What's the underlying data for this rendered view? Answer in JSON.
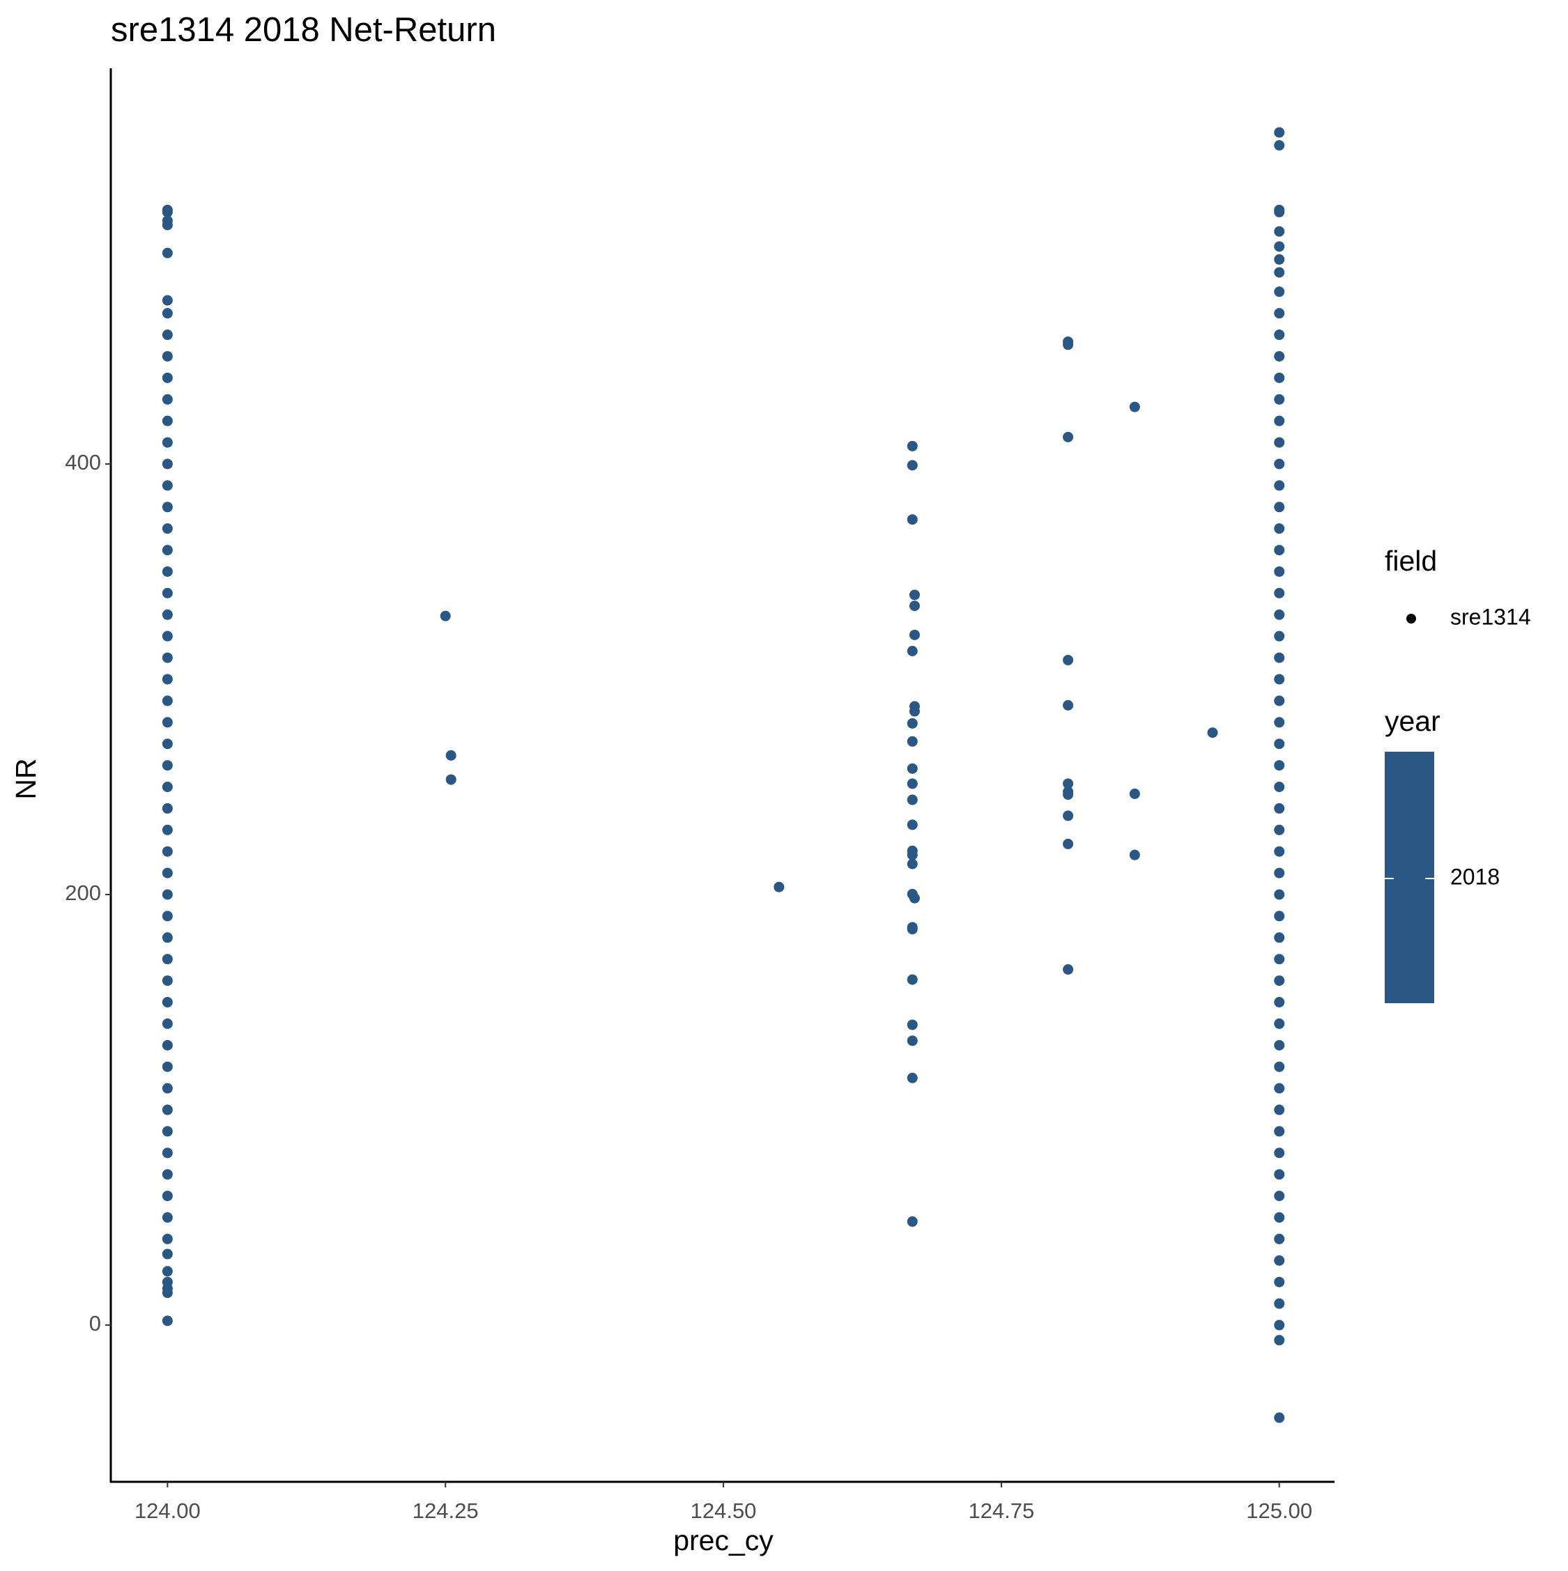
{
  "chart_data": {
    "type": "scatter",
    "title": "sre1314 2018 Net-Return",
    "x_label": "prec_cy",
    "y_label": "NR",
    "xlim": [
      123.949,
      125.0497
    ],
    "ylim": [
      -72.8,
      583.8
    ],
    "xticks": [
      {
        "value": 124,
        "label": "124.00"
      },
      {
        "value": 124.25,
        "label": "124.25"
      },
      {
        "value": 124.5,
        "label": "124.50"
      },
      {
        "value": 124.75,
        "label": "124.75"
      },
      {
        "value": 125,
        "label": "125.00"
      }
    ],
    "yticks": [
      0,
      200,
      400
    ],
    "grid": false,
    "legend": {
      "field_title": "field",
      "year_title": "year",
      "year_label": 2018
    },
    "series": [
      {
        "name": "sre1314",
        "color": "#2a5783",
        "x": [
          124,
          124,
          124,
          124,
          124,
          124,
          124,
          124,
          124,
          124,
          124,
          124,
          124,
          124,
          124,
          124,
          124,
          124,
          124,
          124,
          124,
          124,
          124,
          124,
          124,
          124,
          124,
          124,
          124,
          124,
          124,
          124,
          124,
          124,
          124,
          124,
          124,
          124,
          124,
          124,
          124,
          124,
          124,
          124,
          124,
          124,
          124,
          124,
          124,
          124,
          124,
          124,
          124,
          124,
          124,
          124,
          125,
          125,
          125,
          125,
          125,
          125,
          125,
          125,
          125,
          125,
          125,
          125,
          125,
          125,
          125,
          125,
          125,
          125,
          125,
          125,
          125,
          125,
          125,
          125,
          125,
          125,
          125,
          125,
          125,
          125,
          125,
          125,
          125,
          125,
          125,
          125,
          125,
          125,
          125,
          125,
          125,
          125,
          125,
          125,
          125,
          125,
          125,
          125,
          125,
          125,
          125,
          125,
          125,
          125,
          125,
          125,
          125,
          125,
          125,
          124.25,
          124.255,
          124.255,
          124.55,
          124.67,
          124.67,
          124.67,
          124.672,
          124.672,
          124.672,
          124.67,
          124.672,
          124.672,
          124.67,
          124.67,
          124.67,
          124.67,
          124.67,
          124.67,
          124.67,
          124.67,
          124.67,
          124.67,
          124.672,
          124.67,
          124.67,
          124.67,
          124.67,
          124.67,
          124.67,
          124.67,
          124.81,
          124.81,
          124.81,
          124.81,
          124.81,
          124.81,
          124.81,
          124.81,
          124.81,
          124.81,
          124.81,
          124.87,
          124.87,
          124.87,
          124.94
        ],
        "values": [
          518,
          517,
          513,
          511,
          498,
          476,
          470,
          460,
          450,
          440,
          430,
          420,
          410,
          400,
          390,
          380,
          370,
          360,
          350,
          340,
          330,
          320,
          310,
          300,
          290,
          280,
          270,
          260,
          250,
          240,
          230,
          220,
          210,
          200,
          190,
          180,
          170,
          160,
          150,
          140,
          130,
          120,
          110,
          100,
          90,
          80,
          70,
          60,
          50,
          40,
          33,
          25,
          20,
          17,
          15,
          2,
          554,
          548,
          518,
          517,
          508,
          501,
          495,
          489,
          480,
          470,
          460,
          450,
          440,
          430,
          420,
          410,
          400,
          390,
          380,
          370,
          360,
          350,
          340,
          330,
          320,
          310,
          300,
          290,
          280,
          270,
          260,
          250,
          240,
          230,
          220,
          210,
          200,
          190,
          180,
          170,
          160,
          150,
          140,
          130,
          120,
          110,
          100,
          90,
          80,
          70,
          60,
          50,
          40,
          30,
          20,
          10,
          0,
          -7,
          -43,
          329.4,
          264.6,
          253.4,
          203.5,
          408.3,
          399.4,
          374.2,
          339.2,
          334.1,
          320.6,
          313.1,
          287.4,
          285.1,
          279.5,
          271.1,
          258.5,
          251.5,
          244,
          232.4,
          220.3,
          218.4,
          214.2,
          200.2,
          198.3,
          184.8,
          183.9,
          160.5,
          139.5,
          132.1,
          114.8,
          48.1,
          456.8,
          455.4,
          412.5,
          308.9,
          287.9,
          251.5,
          247.8,
          246.4,
          236.6,
          223.5,
          165.2,
          426.5,
          246.8,
          218.4,
          275.2
        ]
      }
    ]
  }
}
